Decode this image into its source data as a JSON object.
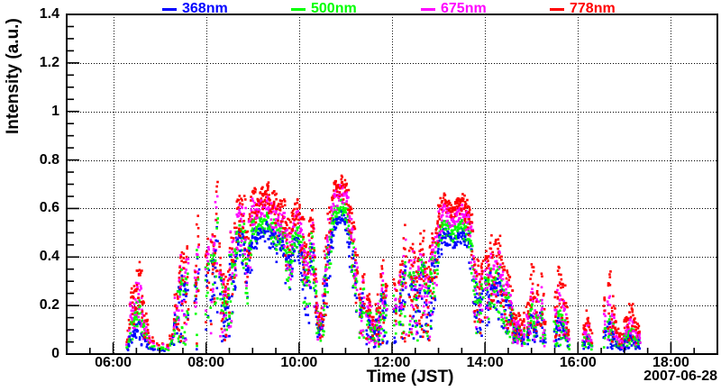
{
  "chart_data": {
    "type": "scatter",
    "title": "",
    "xlabel": "Time (JST)",
    "ylabel": "Intensity (a.u.)",
    "date_label": "2007-06-28",
    "marker": "small filled square, ~3px",
    "x_axis": {
      "unit": "time of day (JST), hours",
      "min_hour": 5,
      "max_hour": 19,
      "tick_hours": [
        6,
        8,
        10,
        12,
        14,
        16,
        18
      ],
      "tick_labels": [
        "06:00",
        "08:00",
        "10:00",
        "12:00",
        "14:00",
        "16:00",
        "18:00"
      ],
      "minor_tick_step_hours": 0.5,
      "grid": "dotted vertical lines at labeled ticks"
    },
    "y_axis": {
      "min": 0,
      "max": 1.4,
      "tick_values": [
        0,
        0.2,
        0.4,
        0.6,
        0.8,
        1.0,
        1.2,
        1.4
      ],
      "tick_labels": [
        "0",
        "0.2",
        "0.4",
        "0.6",
        "0.8",
        "1",
        "1.2",
        "1.4"
      ],
      "minor_tick_step": 0.05,
      "grid": "dotted horizontal lines at labeled ticks"
    },
    "legend": [
      {
        "label": "368nm",
        "color": "#0000ff"
      },
      {
        "label": "500nm",
        "color": "#00ff00"
      },
      {
        "label": "675nm",
        "color": "#ff00ff"
      },
      {
        "label": "778nm",
        "color": "#ff0000"
      }
    ],
    "sampling": {
      "t_start": 6.3,
      "t_step": 0.1,
      "note": "upper-envelope intensity (a.u.) sampled every 0.1 h; null = no data (gap)"
    },
    "series": [
      {
        "name": "368nm",
        "color": "#0000ff",
        "values": [
          0.02,
          0.09,
          0.13,
          0.11,
          0.06,
          0.02,
          0.02,
          0.02,
          0.02,
          0.02,
          0.07,
          0.26,
          0.33,
          0.3,
          0.22,
          0.33,
          0.37,
          0.33,
          0.41,
          0.47,
          0.41,
          0.22,
          0.33,
          0.45,
          0.49,
          0.46,
          0.41,
          0.49,
          0.51,
          0.52,
          0.53,
          0.5,
          0.47,
          0.51,
          0.45,
          0.41,
          0.47,
          0.47,
          0.37,
          0.3,
          0.48,
          0.11,
          0.15,
          0.33,
          0.52,
          0.56,
          0.58,
          0.56,
          0.48,
          0.37,
          0.27,
          0.2,
          0.15,
          0.11,
          0.14,
          0.23,
          0.2,
          0.21,
          0.16,
          0.21,
          0.4,
          0.34,
          0.25,
          0.29,
          0.33,
          0.37,
          0.43,
          0.47,
          0.51,
          0.5,
          0.49,
          0.5,
          0.51,
          0.49,
          0.45,
          0.29,
          0.22,
          0.32,
          0.29,
          0.27,
          0.3,
          0.25,
          0.2,
          0.14,
          0.1,
          0.06,
          0.12,
          0.15,
          0.13,
          0.16,
          0.05,
          null,
          0.12,
          0.13,
          0.1,
          0.03,
          null,
          null,
          0.03,
          0.06,
          0.03,
          null,
          0.05,
          0.08,
          0.12,
          0.06,
          0.02,
          0.05,
          0.08,
          0.06,
          0.05,
          0.02
        ]
      },
      {
        "name": "500nm",
        "color": "#00ff00",
        "values": [
          0.03,
          0.15,
          0.21,
          0.18,
          0.09,
          0.03,
          0.03,
          0.02,
          0.03,
          0.02,
          0.08,
          0.28,
          0.36,
          0.33,
          0.24,
          0.36,
          0.4,
          0.36,
          0.44,
          0.51,
          0.44,
          0.24,
          0.36,
          0.49,
          0.53,
          0.5,
          0.45,
          0.53,
          0.55,
          0.56,
          0.57,
          0.54,
          0.51,
          0.55,
          0.49,
          0.45,
          0.51,
          0.51,
          0.4,
          0.33,
          0.52,
          0.12,
          0.17,
          0.36,
          0.56,
          0.6,
          0.62,
          0.6,
          0.52,
          0.4,
          0.3,
          0.22,
          0.17,
          0.12,
          0.16,
          0.26,
          0.22,
          0.24,
          0.18,
          0.24,
          0.44,
          0.38,
          0.28,
          0.32,
          0.36,
          0.41,
          0.47,
          0.51,
          0.55,
          0.54,
          0.52,
          0.54,
          0.55,
          0.52,
          0.48,
          0.32,
          0.24,
          0.35,
          0.32,
          0.3,
          0.33,
          0.28,
          0.22,
          0.16,
          0.11,
          0.07,
          0.15,
          0.19,
          0.17,
          0.2,
          0.06,
          null,
          0.15,
          0.17,
          0.13,
          0.04,
          null,
          null,
          0.04,
          0.08,
          0.03,
          null,
          0.06,
          0.1,
          0.15,
          0.08,
          0.03,
          0.06,
          0.11,
          0.08,
          0.06,
          0.02
        ]
      },
      {
        "name": "675nm",
        "color": "#ff00ff",
        "values": [
          0.04,
          0.22,
          0.29,
          0.25,
          0.12,
          0.05,
          0.04,
          0.03,
          0.04,
          0.03,
          0.1,
          0.32,
          0.41,
          0.38,
          0.28,
          0.41,
          0.45,
          0.41,
          0.5,
          0.57,
          0.5,
          0.28,
          0.41,
          0.55,
          0.6,
          0.56,
          0.51,
          0.6,
          0.62,
          0.63,
          0.64,
          0.61,
          0.57,
          0.61,
          0.55,
          0.51,
          0.57,
          0.57,
          0.45,
          0.38,
          0.58,
          0.14,
          0.19,
          0.41,
          0.62,
          0.66,
          0.68,
          0.66,
          0.58,
          0.45,
          0.34,
          0.25,
          0.19,
          0.14,
          0.18,
          0.29,
          0.25,
          0.27,
          0.2,
          0.27,
          0.5,
          0.43,
          0.32,
          0.36,
          0.41,
          0.47,
          0.53,
          0.58,
          0.61,
          0.6,
          0.58,
          0.6,
          0.61,
          0.58,
          0.54,
          0.36,
          0.27,
          0.4,
          0.37,
          0.35,
          0.39,
          0.33,
          0.26,
          0.19,
          0.13,
          0.08,
          0.2,
          0.25,
          0.23,
          0.26,
          0.08,
          null,
          0.21,
          0.23,
          0.19,
          0.06,
          null,
          null,
          0.06,
          0.11,
          0.05,
          null,
          0.09,
          0.15,
          0.21,
          0.11,
          0.04,
          0.08,
          0.15,
          0.11,
          0.08,
          0.03
        ]
      },
      {
        "name": "778nm",
        "color": "#ff0000",
        "values": [
          0.05,
          0.28,
          0.36,
          0.31,
          0.16,
          0.06,
          0.05,
          0.04,
          0.05,
          0.04,
          0.12,
          0.36,
          0.46,
          0.43,
          0.32,
          0.46,
          0.51,
          0.46,
          0.56,
          0.62,
          0.56,
          0.32,
          0.46,
          0.6,
          0.64,
          0.6,
          0.56,
          0.64,
          0.66,
          0.68,
          0.69,
          0.66,
          0.62,
          0.66,
          0.6,
          0.56,
          0.62,
          0.62,
          0.5,
          0.42,
          0.63,
          0.16,
          0.22,
          0.46,
          0.66,
          0.7,
          0.72,
          0.7,
          0.62,
          0.5,
          0.38,
          0.28,
          0.22,
          0.16,
          0.21,
          0.33,
          0.28,
          0.31,
          0.23,
          0.31,
          0.56,
          0.48,
          0.36,
          0.41,
          0.46,
          0.52,
          0.58,
          0.62,
          0.65,
          0.64,
          0.62,
          0.64,
          0.65,
          0.62,
          0.58,
          0.41,
          0.31,
          0.46,
          0.43,
          0.41,
          0.46,
          0.39,
          0.31,
          0.23,
          0.16,
          0.11,
          0.26,
          0.33,
          0.31,
          0.34,
          0.11,
          null,
          0.29,
          0.31,
          0.26,
          0.09,
          null,
          null,
          0.09,
          0.15,
          0.07,
          null,
          0.13,
          0.21,
          0.29,
          0.16,
          0.06,
          0.11,
          0.21,
          0.16,
          0.11,
          0.05
        ]
      }
    ],
    "scatter_downward_fraction": [
      0.5,
      0.6,
      0.55,
      0.6,
      0.7,
      0.5,
      0.5,
      0.5,
      0.5,
      0.5,
      0.8,
      0.9,
      0.95,
      0.95,
      0.9,
      0.95,
      0.95,
      0.9,
      0.85,
      0.6,
      0.85,
      0.8,
      0.9,
      0.5,
      0.25,
      0.35,
      0.5,
      0.2,
      0.12,
      0.1,
      0.1,
      0.15,
      0.25,
      0.12,
      0.3,
      0.4,
      0.18,
      0.2,
      0.5,
      0.6,
      0.25,
      0.6,
      0.7,
      0.6,
      0.15,
      0.1,
      0.08,
      0.12,
      0.25,
      0.5,
      0.7,
      0.8,
      0.8,
      0.7,
      0.8,
      0.85,
      0.8,
      0.85,
      0.8,
      0.85,
      0.9,
      0.9,
      0.8,
      0.85,
      0.9,
      0.85,
      0.55,
      0.25,
      0.12,
      0.1,
      0.1,
      0.1,
      0.1,
      0.15,
      0.3,
      0.7,
      0.8,
      0.7,
      0.6,
      0.5,
      0.6,
      0.65,
      0.7,
      0.7,
      0.7,
      0.6,
      0.65,
      0.7,
      0.65,
      0.75,
      0.7,
      0,
      0.75,
      0.8,
      0.75,
      0.6,
      0,
      0,
      0.6,
      0.7,
      0.5,
      0,
      0.7,
      0.75,
      0.8,
      0.7,
      0.5,
      0.6,
      0.75,
      0.7,
      0.65,
      0.5
    ],
    "density": [
      0.4,
      1,
      1,
      1,
      0.8,
      0.25,
      0.2,
      0.15,
      0.2,
      0.15,
      0.6,
      1,
      1,
      1,
      1,
      1,
      1,
      1,
      1,
      1,
      1,
      1,
      1,
      1,
      1,
      1,
      1,
      1,
      1,
      1,
      1,
      1,
      1,
      1,
      1,
      1,
      1,
      1,
      1,
      1,
      1,
      1,
      1,
      1,
      1,
      1,
      1,
      1,
      1,
      1,
      1,
      1,
      1,
      1,
      1,
      1,
      1,
      1,
      1,
      1,
      1,
      1,
      1,
      1,
      1,
      1,
      1,
      1,
      1,
      1,
      1,
      1,
      1,
      1,
      1,
      1,
      1,
      1,
      1,
      1,
      1,
      1,
      1,
      1,
      1,
      0.8,
      1,
      1,
      1,
      1,
      0.8,
      0,
      1,
      1,
      1,
      0.7,
      0,
      0,
      0.8,
      1,
      0.6,
      0,
      0.9,
      1,
      1,
      0.9,
      0.5,
      0.8,
      1,
      1,
      0.8,
      0.5
    ]
  }
}
